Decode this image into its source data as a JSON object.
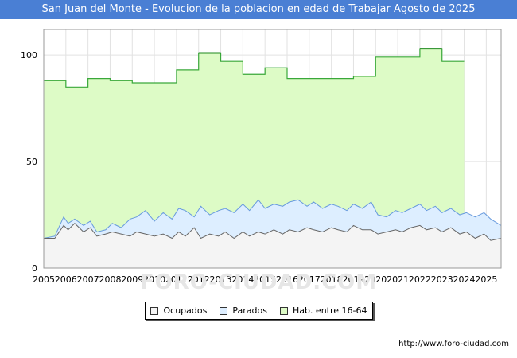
{
  "title": "San Juan del Monte - Evolucion de la poblacion en edad de Trabajar Agosto de 2025",
  "watermark": "FORO-CIUDAD.COM",
  "source": "http://www.foro-ciudad.com",
  "colors": {
    "title_bg": "#4a7fd4",
    "hab_fill": "#ddfbc6",
    "hab_line": "#3aa83a",
    "parados_fill": "#ddeeff",
    "parados_line": "#6699dd",
    "ocupados_fill": "#f4f4f4",
    "ocupados_line": "#666666"
  },
  "chart_data": {
    "type": "area",
    "title": "San Juan del Monte - Evolucion de la poblacion en edad de Trabajar Agosto de 2025",
    "xlabel": "",
    "ylabel": "",
    "xlim": [
      2005,
      2025.67
    ],
    "ylim": [
      0,
      112
    ],
    "yticks": [
      0,
      50,
      100
    ],
    "xticks": [
      "2005",
      "2006",
      "2007",
      "2008",
      "2009",
      "2010",
      "2011",
      "2012",
      "2013",
      "2014",
      "2015",
      "2016",
      "2017",
      "2018",
      "2019",
      "2020",
      "2021",
      "2022",
      "2023",
      "2024",
      "2025"
    ],
    "legend": [
      "Ocupados",
      "Parados",
      "Hab. entre 16-64"
    ],
    "legend_position": "bottom-center",
    "grid": true,
    "hab_series": [
      {
        "year": 2005,
        "value": 88
      },
      {
        "year": 2006,
        "value": 85
      },
      {
        "year": 2007,
        "value": 89
      },
      {
        "year": 2008,
        "value": 88
      },
      {
        "year": 2009,
        "value": 87
      },
      {
        "year": 2010,
        "value": 87
      },
      {
        "year": 2011,
        "value": 93
      },
      {
        "year": 2012,
        "value": 101
      },
      {
        "year": 2013,
        "value": 97
      },
      {
        "year": 2014,
        "value": 91
      },
      {
        "year": 2015,
        "value": 94
      },
      {
        "year": 2016,
        "value": 89
      },
      {
        "year": 2017,
        "value": 89
      },
      {
        "year": 2018,
        "value": 89
      },
      {
        "year": 2019,
        "value": 90
      },
      {
        "year": 2020,
        "value": 99
      },
      {
        "year": 2021,
        "value": 99
      },
      {
        "year": 2022,
        "value": 103
      },
      {
        "year": 2023,
        "value": 97
      }
    ],
    "activos_series": {
      "x": [
        2005.0,
        2005.5,
        2005.9,
        2006.1,
        2006.4,
        2006.8,
        2007.1,
        2007.4,
        2007.8,
        2008.1,
        2008.5,
        2008.9,
        2009.2,
        2009.6,
        2010.0,
        2010.4,
        2010.8,
        2011.1,
        2011.4,
        2011.8,
        2012.1,
        2012.5,
        2012.9,
        2013.2,
        2013.6,
        2014.0,
        2014.3,
        2014.7,
        2015.0,
        2015.4,
        2015.8,
        2016.1,
        2016.5,
        2016.9,
        2017.2,
        2017.6,
        2018.0,
        2018.3,
        2018.7,
        2019.0,
        2019.4,
        2019.8,
        2020.1,
        2020.5,
        2020.9,
        2021.2,
        2021.6,
        2022.0,
        2022.3,
        2022.7,
        2023.0,
        2023.4,
        2023.8,
        2024.1,
        2024.5,
        2024.9,
        2025.2,
        2025.67
      ],
      "values": [
        14,
        15,
        24,
        21,
        23,
        20,
        22,
        17,
        18,
        21,
        19,
        23,
        24,
        27,
        22,
        26,
        23,
        28,
        27,
        24,
        29,
        25,
        27,
        28,
        26,
        30,
        27,
        32,
        28,
        30,
        29,
        31,
        32,
        29,
        31,
        28,
        30,
        29,
        27,
        30,
        28,
        31,
        25,
        24,
        27,
        26,
        28,
        30,
        27,
        29,
        26,
        28,
        25,
        26,
        24,
        26,
        23,
        20
      ]
    },
    "ocupados_series": {
      "x": [
        2005.0,
        2005.5,
        2005.9,
        2006.1,
        2006.4,
        2006.8,
        2007.1,
        2007.4,
        2007.8,
        2008.1,
        2008.5,
        2008.9,
        2009.2,
        2009.6,
        2010.0,
        2010.4,
        2010.8,
        2011.1,
        2011.4,
        2011.8,
        2012.1,
        2012.5,
        2012.9,
        2013.2,
        2013.6,
        2014.0,
        2014.3,
        2014.7,
        2015.0,
        2015.4,
        2015.8,
        2016.1,
        2016.5,
        2016.9,
        2017.2,
        2017.6,
        2018.0,
        2018.3,
        2018.7,
        2019.0,
        2019.4,
        2019.8,
        2020.1,
        2020.5,
        2020.9,
        2021.2,
        2021.6,
        2022.0,
        2022.3,
        2022.7,
        2023.0,
        2023.4,
        2023.8,
        2024.1,
        2024.5,
        2024.9,
        2025.2,
        2025.67
      ],
      "values": [
        14,
        14,
        20,
        18,
        21,
        17,
        19,
        15,
        16,
        17,
        16,
        15,
        17,
        16,
        15,
        16,
        14,
        17,
        15,
        19,
        14,
        16,
        15,
        17,
        14,
        17,
        15,
        17,
        16,
        18,
        16,
        18,
        17,
        19,
        18,
        17,
        19,
        18,
        17,
        20,
        18,
        18,
        16,
        17,
        18,
        17,
        19,
        20,
        18,
        19,
        17,
        19,
        16,
        17,
        14,
        16,
        13,
        14
      ]
    }
  }
}
